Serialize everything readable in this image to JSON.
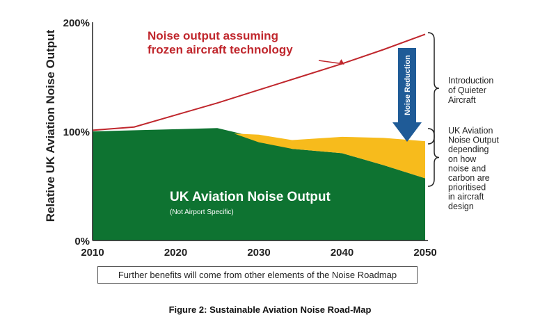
{
  "chart_data": {
    "type": "area",
    "ylabel": "Relative UK Aviation Noise Output",
    "xlabel": "",
    "x_ticks": [
      "2010",
      "2020",
      "2030",
      "2040",
      "2050"
    ],
    "y_ticks": [
      "0%",
      "100%",
      "200%"
    ],
    "xlim": [
      2010,
      2050
    ],
    "ylim": [
      0,
      200
    ],
    "series": [
      {
        "name": "Noise output assuming frozen aircraft technology",
        "type": "line",
        "color": "#c0272d",
        "x": [
          2010,
          2015,
          2020,
          2025,
          2030,
          2035,
          2040,
          2045,
          2050
        ],
        "y": [
          101,
          104,
          115,
          126,
          138,
          150,
          162,
          175,
          189
        ]
      },
      {
        "name": "UK Aviation Noise Output",
        "type": "area",
        "color": "#0e7331",
        "x": [
          2010,
          2020,
          2025,
          2030,
          2034,
          2040,
          2045,
          2050
        ],
        "y": [
          100,
          102,
          103,
          94,
          84,
          80,
          69,
          57
        ]
      },
      {
        "name": "UK Aviation Noise Output depending on how noise and carbon are prioritised in aircraft design",
        "type": "band",
        "color": "#f7bb1c",
        "x": [
          2027,
          2030,
          2034,
          2040,
          2045,
          2050
        ],
        "y_upper": [
          98,
          97,
          92,
          95,
          94,
          91
        ],
        "y_lower": [
          98,
          90,
          84,
          80,
          69,
          57
        ]
      }
    ],
    "annotations": {
      "red_line_label": [
        "Noise output assuming",
        "frozen aircraft technology"
      ],
      "green_title": "UK Aviation Noise Output",
      "green_subtitle": "(Not Airport Specific)",
      "arrow_label": "Noise Reduction",
      "brace_upper": [
        "Introduction",
        "of Quieter",
        "Aircraft"
      ],
      "brace_lower": [
        "UK Aviation",
        "Noise Output",
        "depending",
        "on how",
        "noise and",
        "carbon are",
        "prioritised",
        "in aircraft",
        "design"
      ]
    },
    "colors": {
      "red": "#c0272d",
      "green": "#0e7331",
      "yellow": "#f7bb1c",
      "arrow": "#1f5b97"
    },
    "grid": false,
    "legend": "none"
  },
  "footer_note": "Further benefits will come from other elements of the Noise Roadmap",
  "figure_caption": "Figure 2: Sustainable Aviation Noise Road-Map"
}
